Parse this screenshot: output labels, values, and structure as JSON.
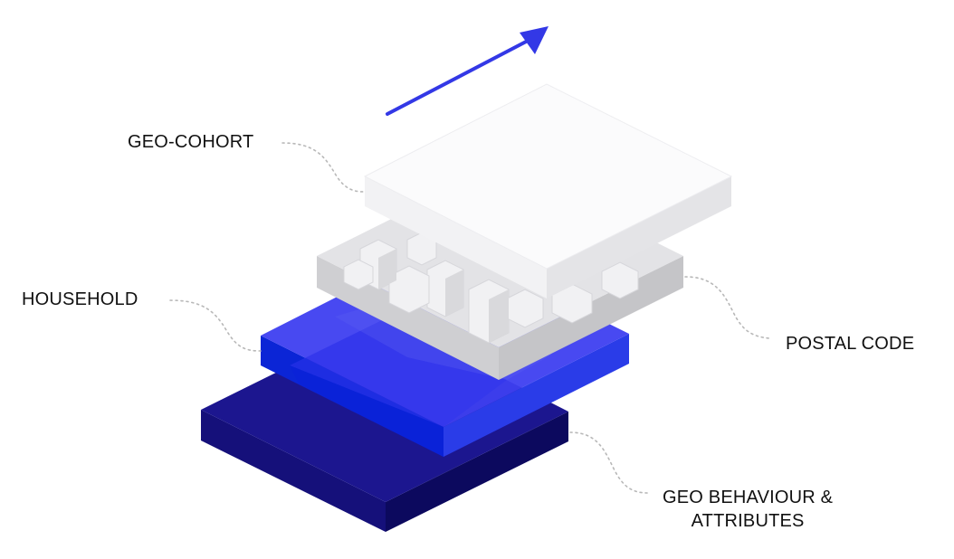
{
  "diagram": {
    "colors": {
      "arrow": "#3338e6",
      "base_top": "#1c168f",
      "base_left": "#15107a",
      "base_right": "#0c095e",
      "household_top": "#3e3ff0",
      "household_overlap": "#0a22d8",
      "postal_top": "#e4e4e6",
      "postal_side": "#d2d2d4",
      "cohort_top": "#fbfbfc",
      "cohort_side": "#e9e9eb",
      "leader_line": "#b8b8b8"
    },
    "layers": [
      {
        "key": "geo_cohort",
        "label": "GEO-COHORT"
      },
      {
        "key": "postal_code",
        "label": "POSTAL CODE"
      },
      {
        "key": "household",
        "label": "HOUSEHOLD"
      },
      {
        "key": "geo_behaviour",
        "label_line1": "GEO BEHAVIOUR &",
        "label_line2": "ATTRIBUTES"
      }
    ]
  }
}
